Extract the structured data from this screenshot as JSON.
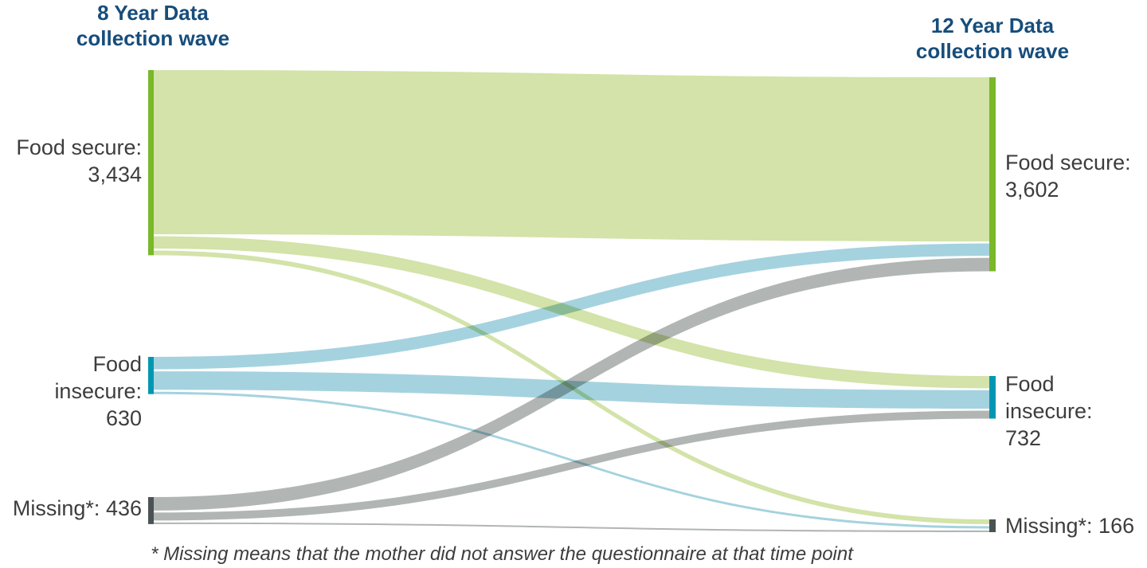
{
  "header": {
    "left": {
      "line1": "8 Year Data",
      "line2": "collection wave"
    },
    "right": {
      "line1": "12 Year Data",
      "line2": "collection wave"
    }
  },
  "palette": {
    "header_blue": "#164d7c",
    "label_gray": "#3d3d3d",
    "food_secure_node": "#79b829",
    "food_secure_flow": "#d3e3a9",
    "food_insecure_node": "#0097b2",
    "food_insecure_flow": "#a5d2df",
    "missing_node": "#4a5254",
    "missing_flow": "#b1b5b4"
  },
  "chart_data": {
    "type": "sankey",
    "columns": [
      {
        "id": "wave8",
        "title": "8 Year Data collection wave"
      },
      {
        "id": "wave12",
        "title": "12 Year Data collection wave"
      }
    ],
    "nodes": [
      {
        "id": "fs8",
        "column": "left",
        "label": "Food secure:",
        "value": 3434,
        "value_text": "3,434",
        "node_color": "#79b829",
        "flow_color": "#d3e3a9"
      },
      {
        "id": "fi8",
        "column": "left",
        "label": "Food insecure:",
        "value": 630,
        "value_text": "630",
        "node_color": "#0097b2",
        "flow_color": "#a5d2df"
      },
      {
        "id": "m8",
        "column": "left",
        "label": "Missing*:",
        "value": 436,
        "value_text": "436",
        "node_color": "#4a5254",
        "flow_color": "#b1b5b4"
      },
      {
        "id": "fs12",
        "column": "right",
        "label": "Food secure:",
        "value": 3602,
        "value_text": "3,602",
        "node_color": "#79b829"
      },
      {
        "id": "fi12",
        "column": "right",
        "label": "Food insecure:",
        "value": 732,
        "value_text": "732",
        "node_color": "#0097b2"
      },
      {
        "id": "m12",
        "column": "right",
        "label": "Missing*:",
        "value": 166,
        "value_text": "166",
        "node_color": "#4a5254"
      }
    ],
    "links": [
      {
        "source": "fs8",
        "target": "fs12",
        "value": 3112
      },
      {
        "source": "fs8",
        "target": "fi12",
        "value": 232
      },
      {
        "source": "fs8",
        "target": "m12",
        "value": 90
      },
      {
        "source": "fi8",
        "target": "fs12",
        "value": 235
      },
      {
        "source": "fi8",
        "target": "fi12",
        "value": 350
      },
      {
        "source": "fi8",
        "target": "m12",
        "value": 45
      },
      {
        "source": "m8",
        "target": "fs12",
        "value": 255
      },
      {
        "source": "m8",
        "target": "fi12",
        "value": 150
      },
      {
        "source": "m8",
        "target": "m12",
        "value": 31
      }
    ],
    "footnote": "* Missing means that the mother did not answer the questionnaire at that time point"
  }
}
